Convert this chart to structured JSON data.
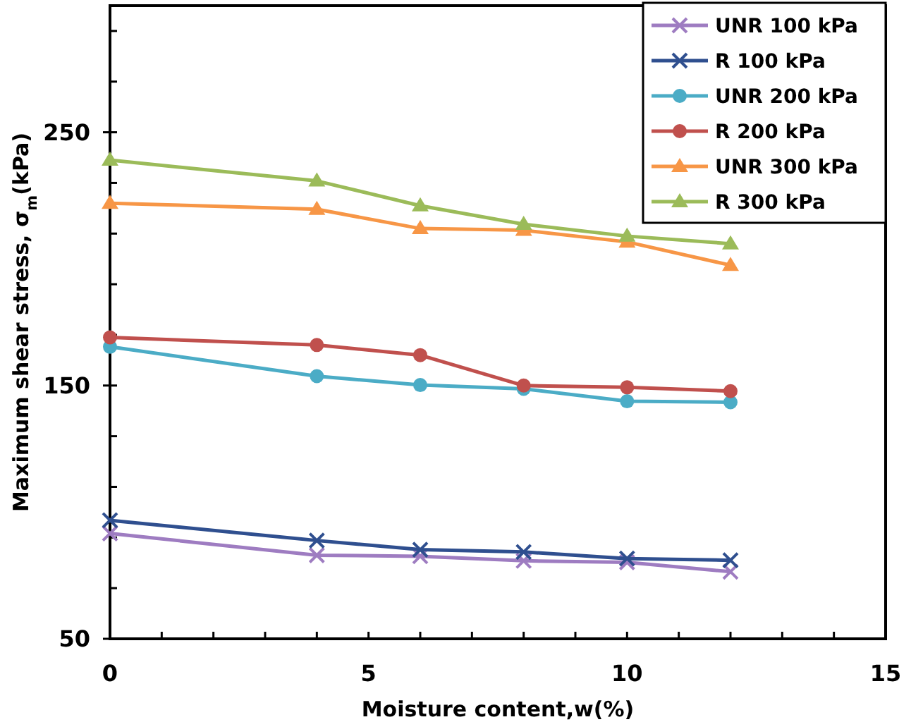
{
  "chart_data": {
    "type": "line",
    "xlabel": "Moisture content,w(%)",
    "ylabel": "Maximum shear stress, σ$_{m}$(kPa)",
    "xlim": [
      0,
      15
    ],
    "xticks": [
      0,
      {
        "value": 1,
        "label": null
      },
      {
        "value": 2,
        "label": null
      },
      {
        "value": 3,
        "label": null
      },
      {
        "value": 4,
        "label": null
      },
      5,
      {
        "value": 6,
        "label": null
      },
      {
        "value": 7,
        "label": null
      },
      {
        "value": 8,
        "label": null
      },
      {
        "value": 9,
        "label": null
      },
      10,
      {
        "value": 11,
        "label": null
      },
      {
        "value": 12,
        "label": null
      },
      {
        "value": 13,
        "label": null
      },
      {
        "value": 14,
        "label": null
      },
      15
    ],
    "ylim": [
      50,
      300
    ],
    "yticks": [
      50,
      {
        "value": 70,
        "label": null
      },
      {
        "value": 90,
        "label": null
      },
      {
        "value": 110,
        "label": null
      },
      {
        "value": 130,
        "label": null
      },
      150,
      {
        "value": 170,
        "label": null
      },
      {
        "value": 190,
        "label": null
      },
      {
        "value": 210,
        "label": null
      },
      {
        "value": 230,
        "label": null
      },
      250,
      {
        "value": 270,
        "label": null
      },
      {
        "value": 290,
        "label": null
      }
    ],
    "x": [
      0,
      4,
      6,
      8,
      10,
      12
    ],
    "grid": false,
    "legend": "top right",
    "line_style": "solid",
    "series": [
      {
        "name": "UNR 100 kPa",
        "color": "#9e7cc1",
        "marker": "cross",
        "values": [
          91.6,
          83,
          82.6,
          80.8,
          80.2,
          76.5
        ]
      },
      {
        "name": "R 100 kPa",
        "color": "#2f4f8f",
        "marker": "cross",
        "values": [
          96.8,
          88.8,
          85.2,
          84.3,
          81.7,
          81
        ]
      },
      {
        "name": "UNR 200 kPa",
        "color": "#4bacc6",
        "marker": "circle",
        "values": [
          165.3,
          153.7,
          150.2,
          148.7,
          143.8,
          143.4
        ]
      },
      {
        "name": "R 200 kPa",
        "color": "#c0504d",
        "marker": "circle",
        "values": [
          169,
          166,
          162,
          150,
          149.3,
          147.8
        ]
      },
      {
        "name": "UNR 300 kPa",
        "color": "#f79646",
        "marker": "triangle",
        "values": [
          222,
          219.6,
          212,
          211.3,
          206.7,
          197.5
        ]
      },
      {
        "name": "R 300 kPa",
        "color": "#9bbb59",
        "marker": "triangle",
        "values": [
          239,
          230.8,
          221,
          213.7,
          209,
          206
        ]
      }
    ]
  }
}
